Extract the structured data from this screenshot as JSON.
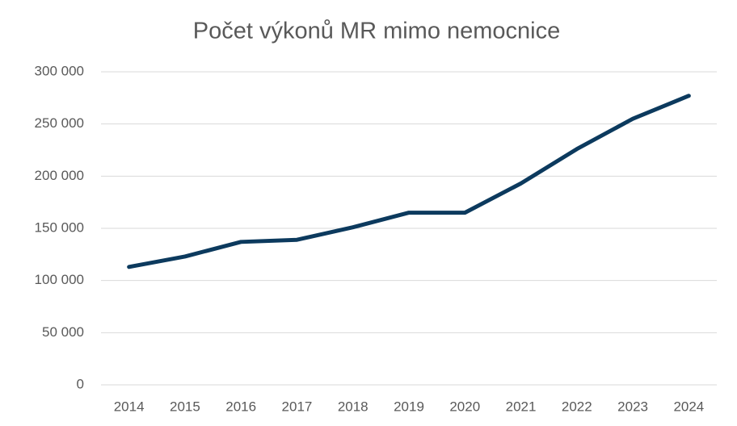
{
  "chart_data": {
    "type": "line",
    "title": "Počet výkonů MR mimo nemocnice",
    "categories": [
      "2014",
      "2015",
      "2016",
      "2017",
      "2018",
      "2019",
      "2020",
      "2021",
      "2022",
      "2023",
      "2024"
    ],
    "values": [
      113000,
      123000,
      137000,
      139000,
      151000,
      165000,
      165000,
      193000,
      226000,
      255000,
      277000
    ],
    "color": "#0c3a5e",
    "ylim": [
      0,
      300000
    ],
    "yticks": [
      0,
      {
        "value": 50000,
        "label": "50 000"
      },
      {
        "value": 100000,
        "label": "100 000"
      },
      {
        "value": 150000,
        "label": "150 000"
      },
      {
        "value": 200000,
        "label": "200 000"
      },
      {
        "value": 250000,
        "label": "250 000"
      },
      {
        "value": 300000,
        "label": "300 000"
      }
    ],
    "grid": true
  }
}
